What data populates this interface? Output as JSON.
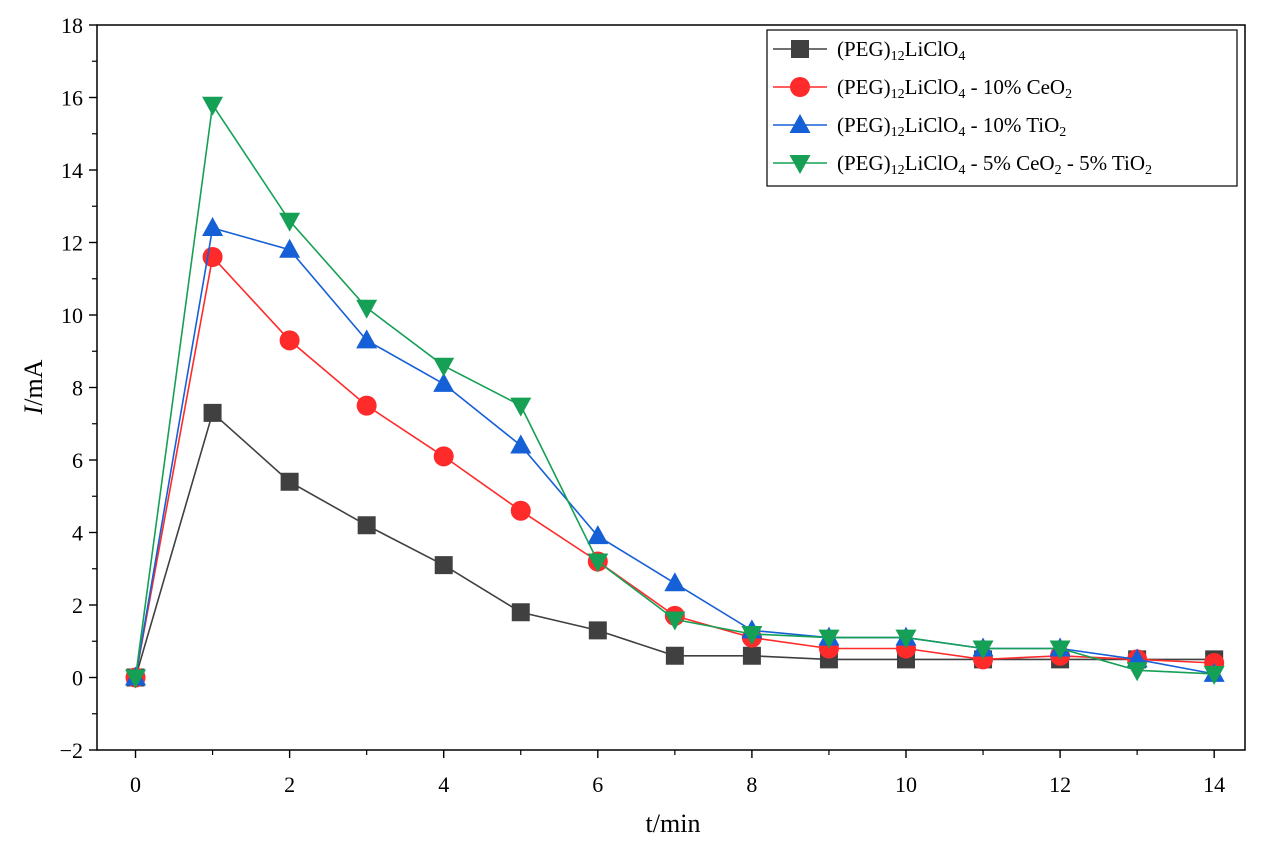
{
  "chart_data": {
    "type": "line",
    "xlabel": "t/min",
    "ylabel_italic": "I",
    "ylabel_rest": "/mA",
    "xlim": [
      -0.5,
      14.4
    ],
    "ylim": [
      -2,
      18
    ],
    "xticks": [
      0,
      2,
      4,
      6,
      8,
      10,
      12,
      14
    ],
    "yticks": [
      -2,
      0,
      2,
      4,
      6,
      8,
      10,
      12,
      14,
      16,
      18
    ],
    "xtick_labels": [
      "0",
      "2",
      "4",
      "6",
      "8",
      "10",
      "12",
      "14"
    ],
    "ytick_labels": [
      "−2",
      "0",
      "2",
      "4",
      "6",
      "8",
      "10",
      "12",
      "14",
      "16",
      "18"
    ],
    "x": [
      0,
      1,
      2,
      3,
      4,
      5,
      6,
      7,
      8,
      9,
      10,
      11,
      12,
      13,
      14
    ],
    "legend_position": "top-right",
    "grid": false,
    "series": [
      {
        "name": "(PEG)12LiClO4",
        "legend_parts": [
          [
            "(PEG)",
            ""
          ],
          [
            "12",
            "sub"
          ],
          [
            "LiClO",
            ""
          ],
          [
            "4",
            "sub"
          ]
        ],
        "color": "#404040",
        "marker": "square",
        "values": [
          0,
          7.3,
          5.4,
          4.2,
          3.1,
          1.8,
          1.3,
          0.6,
          0.6,
          0.5,
          0.5,
          0.5,
          0.5,
          0.5,
          0.5
        ]
      },
      {
        "name": "(PEG)12LiClO4 - 10% CeO2",
        "legend_parts": [
          [
            "(PEG)",
            ""
          ],
          [
            "12",
            "sub"
          ],
          [
            "LiClO",
            ""
          ],
          [
            "4",
            "sub"
          ],
          [
            " - 10% CeO",
            ""
          ],
          [
            "2",
            "sub"
          ]
        ],
        "color": "#ff2a2a",
        "marker": "circle",
        "values": [
          0,
          11.6,
          9.3,
          7.5,
          6.1,
          4.6,
          3.2,
          1.7,
          1.1,
          0.8,
          0.8,
          0.5,
          0.6,
          0.5,
          0.4
        ]
      },
      {
        "name": "(PEG)12LiClO4 - 10% TiO2",
        "legend_parts": [
          [
            "(PEG)",
            ""
          ],
          [
            "12",
            "sub"
          ],
          [
            "LiClO",
            ""
          ],
          [
            "4",
            "sub"
          ],
          [
            " - 10% TiO",
            ""
          ],
          [
            "2",
            "sub"
          ]
        ],
        "color": "#1560d6",
        "marker": "triangle-up",
        "values": [
          0,
          12.4,
          11.8,
          9.3,
          8.1,
          6.4,
          3.9,
          2.6,
          1.3,
          1.1,
          1.1,
          0.8,
          0.8,
          0.5,
          0.1
        ]
      },
      {
        "name": "(PEG)12LiClO4 - 5% CeO2 - 5% TiO2",
        "legend_parts": [
          [
            "(PEG)",
            ""
          ],
          [
            "12",
            "sub"
          ],
          [
            "LiClO",
            ""
          ],
          [
            "4",
            "sub"
          ],
          [
            " - 5% CeO",
            ""
          ],
          [
            "2",
            "sub"
          ],
          [
            " - 5% TiO",
            ""
          ],
          [
            "2",
            "sub"
          ]
        ],
        "color": "#15a055",
        "marker": "triangle-down",
        "values": [
          0,
          15.8,
          12.6,
          10.2,
          8.6,
          7.5,
          3.2,
          1.6,
          1.2,
          1.1,
          1.1,
          0.8,
          0.8,
          0.2,
          0.1
        ]
      }
    ]
  }
}
